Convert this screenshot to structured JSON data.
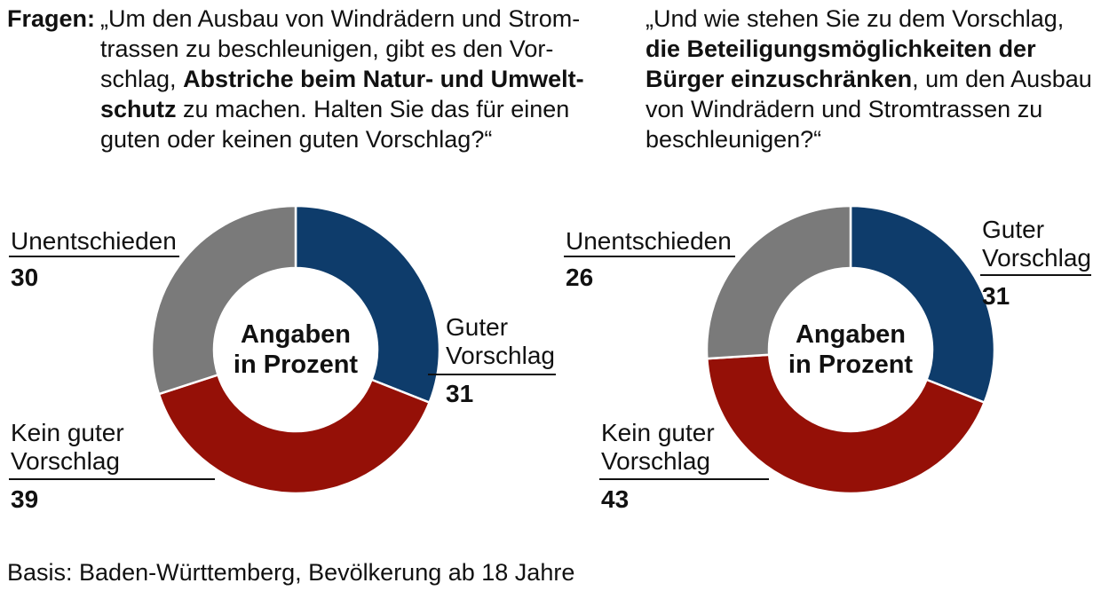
{
  "header": {
    "label": "Fragen:",
    "q1": [
      {
        "text": "„Um den Ausbau von Windrädern und Strom-",
        "bold": false
      },
      {
        "text": "trassen zu beschleunigen, gibt es den Vor-",
        "bold": false
      },
      {
        "text": "schlag, ",
        "bold": false
      },
      {
        "text": "Abstriche beim Natur-  und Umwelt-",
        "bold": true
      },
      {
        "text": "schutz",
        "bold": true
      },
      {
        "text": " zu machen. Halten Sie das für einen",
        "bold": false
      },
      {
        "text": "guten oder keinen  guten  Vorschlag?“",
        "bold": false
      }
    ],
    "q2": [
      {
        "text": "„Und wie stehen Sie zu dem Vorschlag,",
        "bold": false
      },
      {
        "text": "die Beteiligungsmöglichkeiten der",
        "bold": true
      },
      {
        "text": "Bürger einzuschränken",
        "bold": true
      },
      {
        "text": ", um den Ausbau",
        "bold": false
      },
      {
        "text": "von Windrädern und Stromtrassen zu",
        "bold": false
      },
      {
        "text": "beschleunigen?“",
        "bold": false
      }
    ]
  },
  "chart_data": [
    {
      "type": "pie",
      "center_text": [
        "Angaben",
        "in Prozent"
      ],
      "slices": [
        {
          "label": [
            "Guter",
            "Vorschlag"
          ],
          "value": 31,
          "color": "#0e3c6b"
        },
        {
          "label": [
            "Kein guter",
            "Vorschlag"
          ],
          "value": 39,
          "color": "#951007"
        },
        {
          "label": [
            "Unentschieden"
          ],
          "value": 30,
          "color": "#7a7a7a"
        }
      ]
    },
    {
      "type": "pie",
      "center_text": [
        "Angaben",
        "in Prozent"
      ],
      "slices": [
        {
          "label": [
            "Guter",
            "Vorschlag"
          ],
          "value": 31,
          "color": "#0e3c6b"
        },
        {
          "label": [
            "Kein guter",
            "Vorschlag"
          ],
          "value": 43,
          "color": "#951007"
        },
        {
          "label": [
            "Unentschieden"
          ],
          "value": 26,
          "color": "#7a7a7a"
        }
      ]
    }
  ],
  "footer": "Basis: Baden-Württemberg, Bevölkerung ab 18 Jahre"
}
